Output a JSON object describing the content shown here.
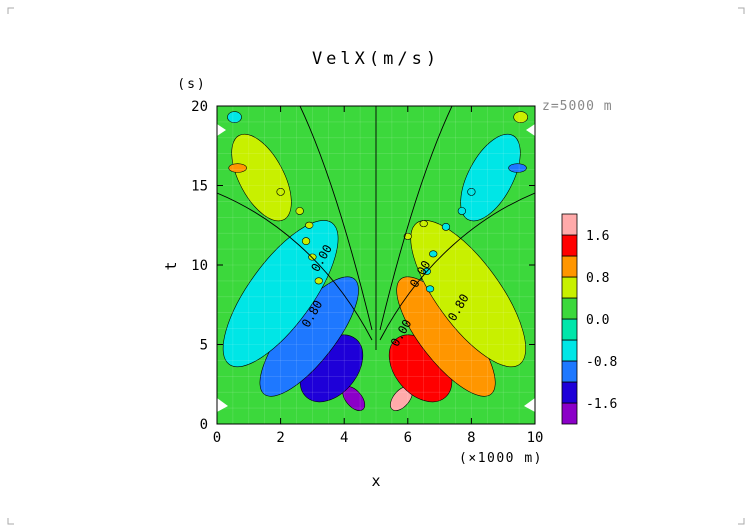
{
  "chart_data": {
    "type": "heatmap",
    "title": "VelX(m/s)",
    "xlabel": "x",
    "x_unit_label": "(×1000 m)",
    "ylabel": "t",
    "y_unit_label": "(s)",
    "annotation": "z=5000 m",
    "xlim": [
      0,
      10
    ],
    "ylim": [
      0,
      20
    ],
    "x_ticks": [
      0,
      2,
      4,
      6,
      8,
      10
    ],
    "x_tick_labels": [
      "0",
      "2",
      "4",
      "6",
      "8",
      "10"
    ],
    "y_ticks": [
      0,
      5,
      10,
      15,
      20
    ],
    "y_tick_labels": [
      "0",
      "5",
      "10",
      "15",
      "20"
    ],
    "colorbar": {
      "levels": [
        -2.0,
        -1.6,
        -1.2,
        -0.8,
        -0.4,
        0.0,
        0.4,
        0.8,
        1.2,
        1.6,
        2.0
      ],
      "colors": [
        "#8b00c8",
        "#1e00d8",
        "#1e78ff",
        "#00e6e6",
        "#00e6aa",
        "#3cd83c",
        "#c8f000",
        "#ff9600",
        "#ff0000",
        "#ffaaaa"
      ],
      "tick_values": [
        1.6,
        0.8,
        0.0,
        -0.8,
        -1.6
      ],
      "tick_labels": [
        "1.6",
        "0.8",
        "0.0",
        "-0.8",
        "-1.6"
      ]
    },
    "contour_labels": [
      {
        "text": "0.00",
        "x": 3.4,
        "y": 10.3
      },
      {
        "text": "0.00",
        "x": 6.5,
        "y": 9.3
      },
      {
        "text": "0.80",
        "x": 3.1,
        "y": 6.8
      },
      {
        "text": "0.80",
        "x": 7.7,
        "y": 7.2
      },
      {
        "text": "0.00",
        "x": 5.9,
        "y": 5.6
      }
    ],
    "features": [
      {
        "value": -1.9,
        "x": 4.3,
        "y": 1.6,
        "width": 0.45,
        "height": 1.0,
        "angle": 50
      },
      {
        "value": 1.9,
        "x": 5.8,
        "y": 1.6,
        "width": 0.45,
        "height": 1.0,
        "angle": -50
      },
      {
        "value": -1.4,
        "x": 3.6,
        "y": 3.5,
        "width": 0.8,
        "height": 4.8,
        "angle": 40
      },
      {
        "value": 1.4,
        "x": 6.4,
        "y": 3.5,
        "width": 0.8,
        "height": 4.8,
        "angle": -40
      },
      {
        "value": -1.0,
        "x": 2.9,
        "y": 5.5,
        "width": 0.8,
        "height": 9.2,
        "angle": 38
      },
      {
        "value": 1.0,
        "x": 7.2,
        "y": 5.5,
        "width": 0.8,
        "height": 9.2,
        "angle": -38
      },
      {
        "value": -0.6,
        "x": 2.0,
        "y": 8.2,
        "width": 1.0,
        "height": 11.0,
        "angle": 36
      },
      {
        "value": 0.6,
        "x": 7.9,
        "y": 8.2,
        "width": 1.0,
        "height": 11.0,
        "angle": -36
      },
      {
        "value": 0.6,
        "x": 1.4,
        "y": 15.5,
        "width": 0.7,
        "height": 6.0,
        "angle": -28
      },
      {
        "value": -0.6,
        "x": 8.6,
        "y": 15.5,
        "width": 0.7,
        "height": 6.0,
        "angle": 28
      },
      {
        "value": 1.0,
        "x": 0.65,
        "y": 16.1,
        "width": 0.28,
        "height": 0.55,
        "angle": 0
      },
      {
        "value": -1.0,
        "x": 9.45,
        "y": 16.1,
        "width": 0.28,
        "height": 0.55,
        "angle": 0
      },
      {
        "value": 0.5,
        "x": 2.0,
        "y": 14.6,
        "width": 0.12,
        "height": 0.45,
        "angle": 0
      },
      {
        "value": 0.5,
        "x": 2.6,
        "y": 13.4,
        "width": 0.12,
        "height": 0.45,
        "angle": 0
      },
      {
        "value": 0.5,
        "x": 2.8,
        "y": 11.5,
        "width": 0.12,
        "height": 0.45,
        "angle": 0
      },
      {
        "value": 0.5,
        "x": 3.0,
        "y": 10.5,
        "width": 0.12,
        "height": 0.4,
        "angle": 0
      },
      {
        "value": 0.5,
        "x": 3.2,
        "y": 9.0,
        "width": 0.12,
        "height": 0.4,
        "angle": 0
      },
      {
        "value": 0.5,
        "x": 2.9,
        "y": 12.5,
        "width": 0.12,
        "height": 0.4,
        "angle": 0
      },
      {
        "value": -0.5,
        "x": 8.0,
        "y": 14.6,
        "width": 0.12,
        "height": 0.45,
        "angle": 0
      },
      {
        "value": -0.5,
        "x": 7.7,
        "y": 13.4,
        "width": 0.12,
        "height": 0.45,
        "angle": 0
      },
      {
        "value": -0.5,
        "x": 7.2,
        "y": 12.4,
        "width": 0.12,
        "height": 0.45,
        "angle": 0
      },
      {
        "value": -0.5,
        "x": 6.8,
        "y": 10.7,
        "width": 0.12,
        "height": 0.4,
        "angle": 0
      },
      {
        "value": -0.5,
        "x": 6.6,
        "y": 9.6,
        "width": 0.12,
        "height": 0.4,
        "angle": 0
      },
      {
        "value": -0.5,
        "x": 6.7,
        "y": 8.5,
        "width": 0.12,
        "height": 0.4,
        "angle": 0
      },
      {
        "value": 0.5,
        "x": 6.0,
        "y": 11.8,
        "width": 0.12,
        "height": 0.4,
        "angle": 0
      },
      {
        "value": 0.5,
        "x": 6.5,
        "y": 12.6,
        "width": 0.12,
        "height": 0.4,
        "angle": 0
      },
      {
        "value": -0.6,
        "x": 0.55,
        "y": 19.3,
        "width": 0.22,
        "height": 0.7,
        "angle": 0
      },
      {
        "value": 0.6,
        "x": 9.55,
        "y": 19.3,
        "width": 0.22,
        "height": 0.7,
        "angle": 0
      }
    ]
  }
}
